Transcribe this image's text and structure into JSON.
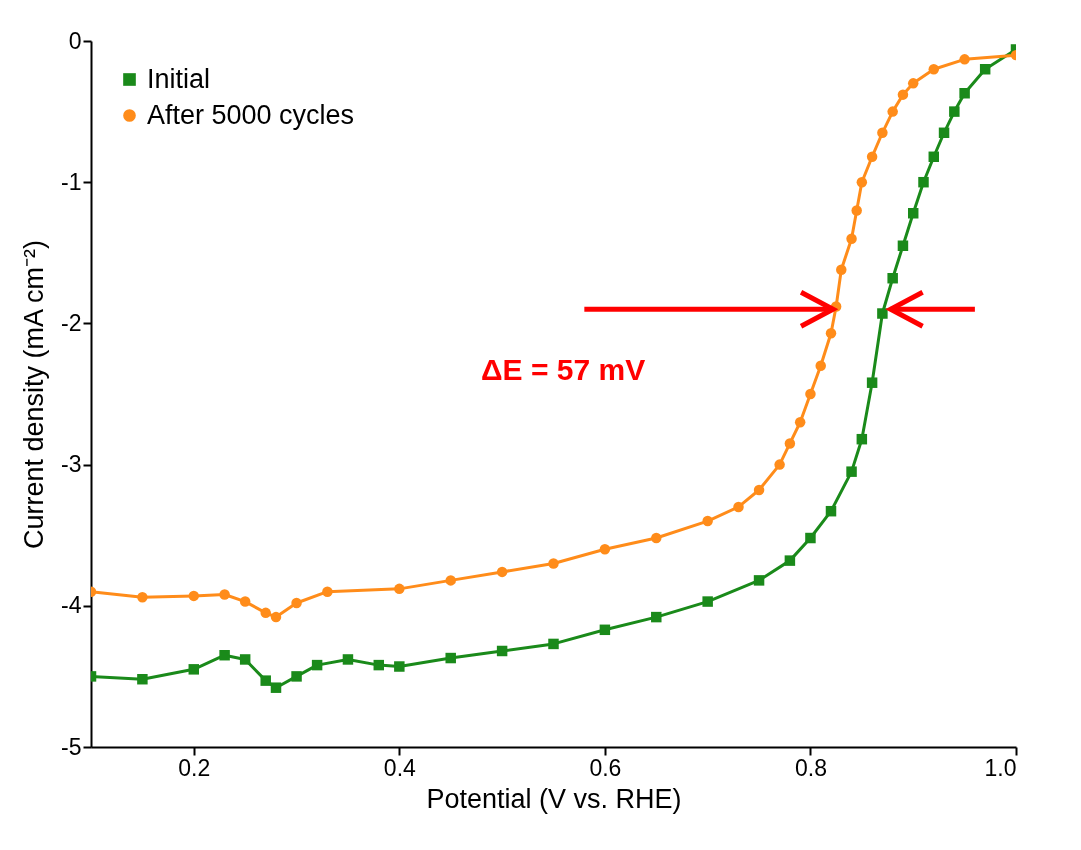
{
  "chart_data": {
    "type": "line",
    "xlabel": "Potential (V vs. RHE)",
    "ylabel": "Current density (mA cm⁻²)",
    "xlim": [
      0.1,
      1.0
    ],
    "xticks": [
      0.2,
      0.4,
      0.6,
      0.8,
      {
        "value": 1.0,
        "label": "1.0"
      }
    ],
    "ylim": [
      -5,
      0
    ],
    "yticks": [
      0,
      -1,
      -2,
      -3,
      -4,
      -5
    ],
    "grid": false,
    "legend": "top left",
    "line_style": "solid",
    "annotations": [
      "ΔE = 57 mV"
    ],
    "series": [
      {
        "name": "Initial",
        "color": "#1a8a1a",
        "marker": "square",
        "x": [
          0.1,
          0.15,
          0.2,
          0.23,
          0.25,
          0.27,
          0.28,
          0.3,
          0.32,
          0.35,
          0.38,
          0.4,
          0.45,
          0.5,
          0.55,
          0.6,
          0.65,
          0.7,
          0.75,
          0.78,
          0.8,
          0.82,
          0.84,
          0.85,
          0.86,
          0.87,
          0.88,
          0.89,
          0.9,
          0.91,
          0.92,
          0.93,
          0.94,
          0.95,
          0.97,
          1.0
        ],
        "values": [
          -4.5,
          -4.52,
          -4.45,
          -4.35,
          -4.38,
          -4.53,
          -4.58,
          -4.5,
          -4.42,
          -4.38,
          -4.42,
          -4.43,
          -4.37,
          -4.32,
          -4.27,
          -4.17,
          -4.08,
          -3.97,
          -3.82,
          -3.68,
          -3.52,
          -3.33,
          -3.05,
          -2.82,
          -2.42,
          -1.93,
          -1.68,
          -1.45,
          -1.22,
          -1.0,
          -0.82,
          -0.65,
          -0.5,
          -0.37,
          -0.2,
          -0.06
        ]
      },
      {
        "name": "After 5000 cycles",
        "color": "#ff8c1a",
        "marker": "circle",
        "x": [
          0.1,
          0.15,
          0.2,
          0.23,
          0.25,
          0.27,
          0.28,
          0.3,
          0.33,
          0.4,
          0.45,
          0.5,
          0.55,
          0.6,
          0.65,
          0.7,
          0.73,
          0.75,
          0.77,
          0.78,
          0.79,
          0.8,
          0.81,
          0.82,
          0.825,
          0.83,
          0.84,
          0.845,
          0.85,
          0.86,
          0.87,
          0.88,
          0.89,
          0.9,
          0.92,
          0.95,
          1.0
        ],
        "values": [
          -3.9,
          -3.94,
          -3.93,
          -3.92,
          -3.97,
          -4.05,
          -4.08,
          -3.98,
          -3.9,
          -3.88,
          -3.82,
          -3.76,
          -3.7,
          -3.6,
          -3.52,
          -3.4,
          -3.3,
          -3.18,
          -3.0,
          -2.85,
          -2.7,
          -2.5,
          -2.3,
          -2.07,
          -1.88,
          -1.62,
          -1.4,
          -1.2,
          -1.0,
          -0.82,
          -0.65,
          -0.5,
          -0.38,
          -0.3,
          -0.2,
          -0.13,
          -0.1
        ]
      }
    ]
  }
}
